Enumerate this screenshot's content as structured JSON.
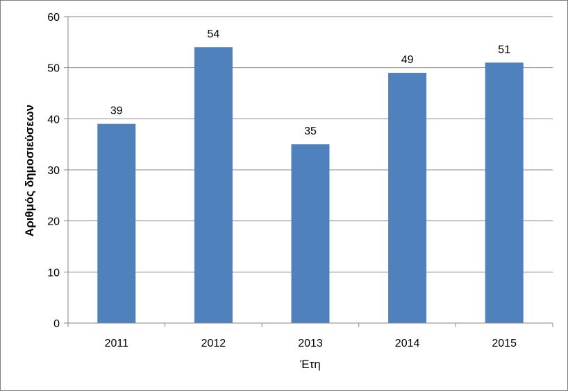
{
  "chart_data": {
    "type": "bar",
    "categories": [
      "2011",
      "2012",
      "2013",
      "2014",
      "2015"
    ],
    "values": [
      39,
      54,
      35,
      49,
      51
    ],
    "data_labels": [
      "39",
      "54",
      "35",
      "49",
      "51"
    ],
    "title": "",
    "xlabel": "Έτη",
    "ylabel": "Αριθμός δημοσιεύσεων",
    "ylim": [
      0,
      60
    ],
    "yticks": [
      0,
      10,
      20,
      30,
      40,
      50,
      60
    ],
    "ytick_labels": [
      "0",
      "10",
      "20",
      "30",
      "40",
      "50",
      "60"
    ],
    "grid": true,
    "legend": "none",
    "bar_color": "#4f81bd",
    "grid_color": "#868686"
  }
}
